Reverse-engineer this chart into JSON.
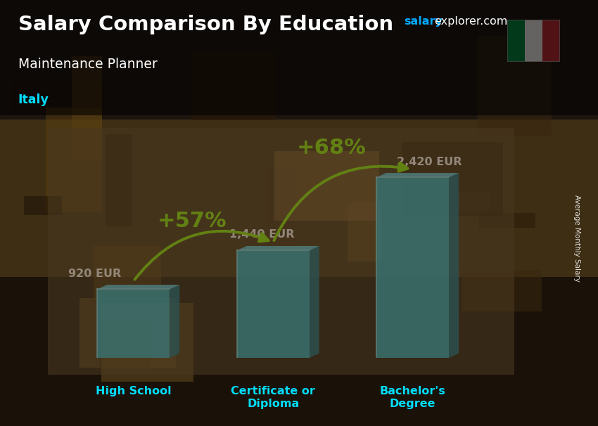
{
  "title_line1": "Salary Comparison By Education",
  "subtitle": "Maintenance Planner",
  "country": "Italy",
  "watermark_salary": "salary",
  "watermark_rest": "explorer.com",
  "ylabel": "Average Monthly Salary",
  "categories": [
    "High School",
    "Certificate or\nDiploma",
    "Bachelor's\nDegree"
  ],
  "values": [
    920,
    1440,
    2420
  ],
  "value_labels": [
    "920 EUR",
    "1,440 EUR",
    "2,420 EUR"
  ],
  "pct_labels": [
    "+57%",
    "+68%"
  ],
  "bar_color_main": "#22ccee",
  "bar_color_light": "#55ddff",
  "bar_color_dark": "#0099bb",
  "bar_color_side": "#007799",
  "bar_alpha": 0.82,
  "title_color": "#ffffff",
  "subtitle_color": "#ffffff",
  "country_color": "#00ddff",
  "value_label_color": "#ffffff",
  "pct_color": "#aaff00",
  "watermark_salary_color": "#00aaff",
  "watermark_rest_color": "#ffffff",
  "arrow_color": "#88ee00",
  "italy_flag_green": "#009246",
  "italy_flag_white": "#ffffff",
  "italy_flag_red": "#ce2b37",
  "bg_top": "#2a1f0e",
  "bg_mid": "#4a3520",
  "bg_bot": "#3a2a10",
  "xlim": [
    -0.7,
    2.9
  ],
  "ylim": [
    0,
    3200
  ],
  "bar_width": 0.52,
  "bar_positions": [
    0,
    1,
    2
  ],
  "depth_x": 0.07,
  "depth_y": 60
}
